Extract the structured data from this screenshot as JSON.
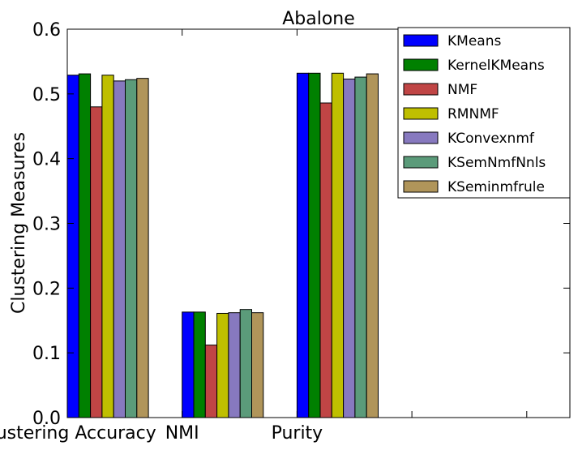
{
  "chart_data": {
    "type": "bar",
    "title": "Abalone",
    "xlabel": "",
    "ylabel": "Clustering Measures",
    "ylim": [
      0,
      0.6
    ],
    "yticks": [
      "0.0",
      "0.1",
      "0.2",
      "0.3",
      "0.4",
      "0.5",
      "0.6"
    ],
    "categories": [
      "Clustering Accuracy",
      "NMI",
      "Purity"
    ],
    "legend_position": "top-right",
    "grid": false,
    "series": [
      {
        "name": "KMeans",
        "color": "#0000ff",
        "values": [
          0.529,
          0.163,
          0.532
        ]
      },
      {
        "name": "KernelKMeans",
        "color": "#008000",
        "values": [
          0.531,
          0.163,
          0.532
        ]
      },
      {
        "name": "NMF",
        "color": "#c04545",
        "values": [
          0.48,
          0.112,
          0.486
        ]
      },
      {
        "name": "RMNMF",
        "color": "#bfbf00",
        "values": [
          0.529,
          0.161,
          0.532
        ]
      },
      {
        "name": "KConvexnmf",
        "color": "#8779bf",
        "values": [
          0.52,
          0.162,
          0.523
        ]
      },
      {
        "name": "KSemNmfNnls",
        "color": "#5b9b7a",
        "values": [
          0.522,
          0.167,
          0.526
        ]
      },
      {
        "name": "KSeminmfrule",
        "color": "#b0955a",
        "values": [
          0.524,
          0.162,
          0.531
        ]
      }
    ]
  }
}
